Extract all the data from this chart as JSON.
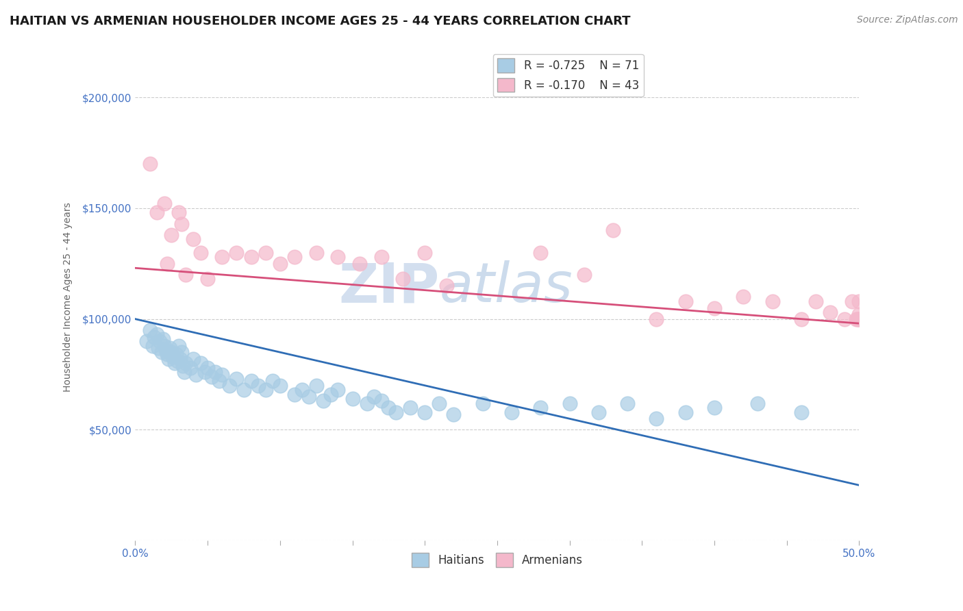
{
  "title": "HAITIAN VS ARMENIAN HOUSEHOLDER INCOME AGES 25 - 44 YEARS CORRELATION CHART",
  "source_text": "Source: ZipAtlas.com",
  "ylabel": "Householder Income Ages 25 - 44 years",
  "xlim": [
    0.0,
    0.5
  ],
  "ylim": [
    0,
    220000
  ],
  "yticks": [
    0,
    50000,
    100000,
    150000,
    200000
  ],
  "ytick_labels": [
    "",
    "$50,000",
    "$100,000",
    "$150,000",
    "$200,000"
  ],
  "xticks": [
    0.0,
    0.05,
    0.1,
    0.15,
    0.2,
    0.25,
    0.3,
    0.35,
    0.4,
    0.45,
    0.5
  ],
  "xtick_labels": [
    "0.0%",
    "",
    "",
    "",
    "",
    "",
    "",
    "",
    "",
    "",
    "50.0%"
  ],
  "watermark_zip": "ZIP",
  "watermark_atlas": "atlas",
  "legend_r1": "R = -0.725",
  "legend_n1": "N = 71",
  "legend_r2": "R = -0.170",
  "legend_n2": "N = 43",
  "haitian_color": "#a8cce4",
  "armenian_color": "#f4b8cb",
  "haitian_line_color": "#2f6db5",
  "armenian_line_color": "#d64f7a",
  "axis_label_color": "#4472c4",
  "background_color": "#ffffff",
  "haitian_x": [
    0.008,
    0.01,
    0.012,
    0.013,
    0.015,
    0.016,
    0.017,
    0.018,
    0.019,
    0.02,
    0.021,
    0.022,
    0.023,
    0.024,
    0.025,
    0.026,
    0.027,
    0.028,
    0.029,
    0.03,
    0.031,
    0.032,
    0.033,
    0.034,
    0.035,
    0.038,
    0.04,
    0.042,
    0.045,
    0.048,
    0.05,
    0.053,
    0.055,
    0.058,
    0.06,
    0.065,
    0.07,
    0.075,
    0.08,
    0.085,
    0.09,
    0.095,
    0.1,
    0.11,
    0.115,
    0.12,
    0.125,
    0.13,
    0.135,
    0.14,
    0.15,
    0.16,
    0.165,
    0.17,
    0.175,
    0.18,
    0.19,
    0.2,
    0.21,
    0.22,
    0.24,
    0.26,
    0.28,
    0.3,
    0.32,
    0.34,
    0.36,
    0.38,
    0.4,
    0.43,
    0.46
  ],
  "haitian_y": [
    90000,
    95000,
    88000,
    92000,
    93000,
    87000,
    90000,
    85000,
    91000,
    88000,
    86000,
    84000,
    82000,
    87000,
    85000,
    83000,
    80000,
    84000,
    81000,
    88000,
    82000,
    85000,
    79000,
    76000,
    80000,
    78000,
    82000,
    75000,
    80000,
    76000,
    78000,
    74000,
    76000,
    72000,
    75000,
    70000,
    73000,
    68000,
    72000,
    70000,
    68000,
    72000,
    70000,
    66000,
    68000,
    65000,
    70000,
    63000,
    66000,
    68000,
    64000,
    62000,
    65000,
    63000,
    60000,
    58000,
    60000,
    58000,
    62000,
    57000,
    62000,
    58000,
    60000,
    62000,
    58000,
    62000,
    55000,
    58000,
    60000,
    62000,
    58000
  ],
  "armenian_x": [
    0.01,
    0.015,
    0.02,
    0.022,
    0.025,
    0.03,
    0.032,
    0.035,
    0.04,
    0.045,
    0.05,
    0.06,
    0.07,
    0.08,
    0.09,
    0.1,
    0.11,
    0.125,
    0.14,
    0.155,
    0.17,
    0.185,
    0.2,
    0.215,
    0.28,
    0.31,
    0.33,
    0.36,
    0.38,
    0.4,
    0.42,
    0.44,
    0.46,
    0.47,
    0.48,
    0.49,
    0.495,
    0.498,
    0.499,
    0.5,
    0.5,
    0.5,
    0.5
  ],
  "armenian_y": [
    170000,
    148000,
    152000,
    125000,
    138000,
    148000,
    143000,
    120000,
    136000,
    130000,
    118000,
    128000,
    130000,
    128000,
    130000,
    125000,
    128000,
    130000,
    128000,
    125000,
    128000,
    118000,
    130000,
    115000,
    130000,
    120000,
    140000,
    100000,
    108000,
    105000,
    110000,
    108000,
    100000,
    108000,
    103000,
    100000,
    108000,
    100000,
    100000,
    108000,
    100000,
    102000,
    100000
  ],
  "haitian_trend_x": [
    0.0,
    0.5
  ],
  "haitian_trend_y": [
    100000,
    25000
  ],
  "armenian_trend_x": [
    0.0,
    0.5
  ],
  "armenian_trend_y": [
    123000,
    98000
  ],
  "grid_color": "#cccccc",
  "title_fontsize": 13,
  "label_fontsize": 10,
  "tick_fontsize": 11,
  "source_fontsize": 10
}
